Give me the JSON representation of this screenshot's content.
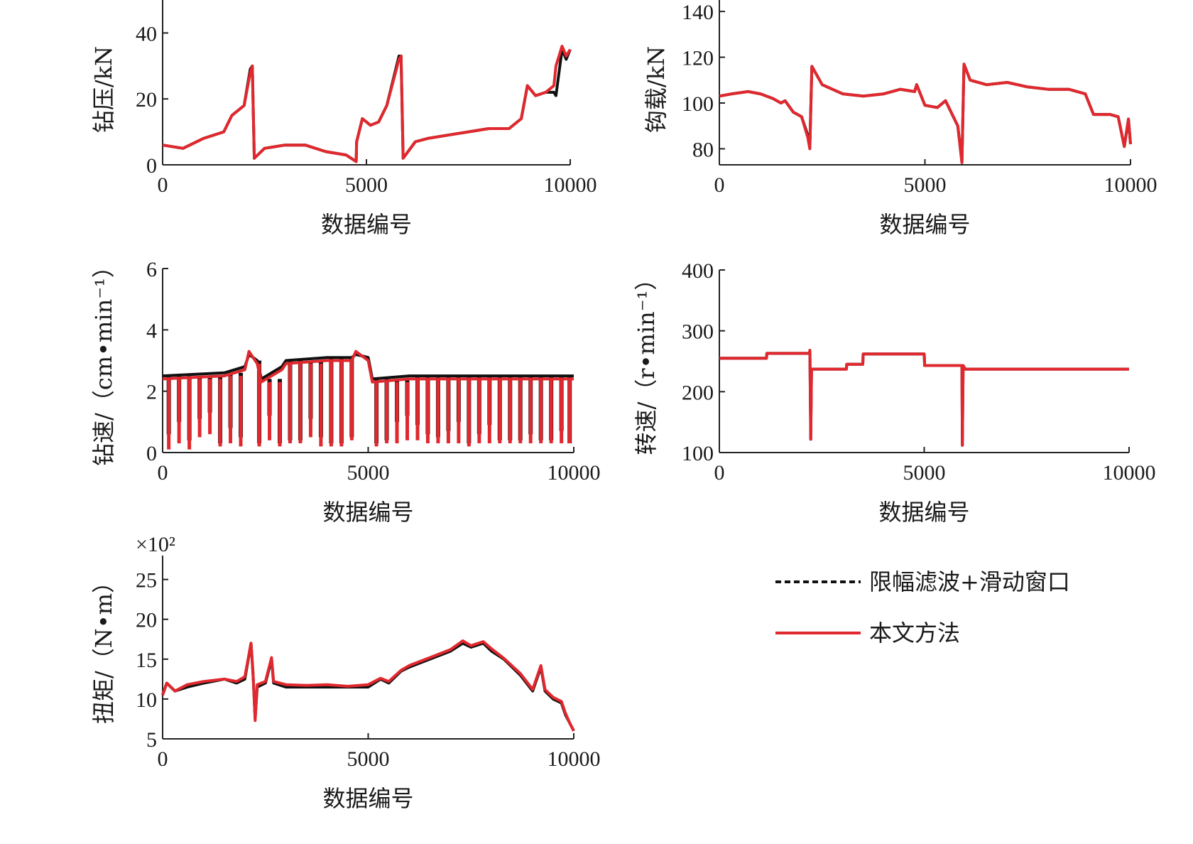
{
  "colors": {
    "filter": "#111111",
    "method": "#e0282e",
    "axis": "#222222"
  },
  "legend": {
    "filter_label": "限幅滤波+滑动窗口",
    "method_label": "本文方法"
  },
  "chart_data": [
    {
      "id": "drill-pressure",
      "type": "line",
      "ylabel": "钻压/kN",
      "xlabel": "数据编号",
      "xlim": [
        0,
        10000
      ],
      "ylim": [
        0,
        50
      ],
      "xticks": [
        "0",
        "5000",
        "10000"
      ],
      "xtick_values": [
        0,
        5000,
        10000
      ],
      "yticks": [
        "0",
        "20",
        "40"
      ],
      "ytick_values": [
        0,
        20,
        40
      ],
      "series": [
        {
          "name": "限幅滤波+滑动窗口",
          "role": "filter",
          "x": [
            0,
            500,
            1000,
            1500,
            1700,
            2000,
            2150,
            2200,
            2250,
            2500,
            3000,
            3500,
            4000,
            4500,
            4750,
            4760,
            4900,
            5100,
            5300,
            5500,
            5800,
            5850,
            5900,
            6200,
            6500,
            7000,
            7500,
            8000,
            8500,
            8800,
            8950,
            9150,
            9400,
            9600,
            9650,
            9800,
            9900,
            10000
          ],
          "y": [
            6,
            5,
            8,
            10,
            15,
            18,
            29,
            30,
            2,
            5,
            6,
            6,
            4,
            3,
            1,
            7,
            14,
            12,
            13,
            18,
            33,
            33,
            2,
            7,
            8,
            9,
            10,
            11,
            11,
            14,
            24,
            21,
            22,
            22,
            21,
            35,
            32,
            35
          ]
        },
        {
          "name": "本文方法",
          "role": "method",
          "x": [
            0,
            500,
            1000,
            1500,
            1700,
            2000,
            2150,
            2200,
            2250,
            2500,
            3000,
            3500,
            4000,
            4500,
            4750,
            4760,
            4900,
            5100,
            5300,
            5500,
            5800,
            5850,
            5900,
            6200,
            6500,
            7000,
            7500,
            8000,
            8500,
            8800,
            8950,
            9150,
            9400,
            9600,
            9650,
            9800,
            9900,
            10000
          ],
          "y": [
            6,
            5,
            8,
            10,
            15,
            18,
            28,
            30,
            2,
            5,
            6,
            6,
            4,
            3,
            1,
            7,
            14,
            12,
            13,
            18,
            32,
            33,
            2,
            7,
            8,
            9,
            10,
            11,
            11,
            14,
            24,
            21,
            22,
            24,
            30,
            36,
            33,
            35
          ]
        }
      ]
    },
    {
      "id": "hook-load",
      "type": "line",
      "ylabel": "钩载/kN",
      "xlabel": "数据编号",
      "xlim": [
        0,
        10000
      ],
      "ylim": [
        73,
        145
      ],
      "xticks": [
        "0",
        "5000",
        "10000"
      ],
      "xtick_values": [
        0,
        5000,
        10000
      ],
      "yticks": [
        "80",
        "100",
        "120",
        "140"
      ],
      "ytick_values": [
        80,
        100,
        120,
        140
      ],
      "series": [
        {
          "name": "限幅滤波+滑动窗口",
          "role": "filter",
          "x": [
            0,
            300,
            700,
            1000,
            1300,
            1500,
            1600,
            1800,
            2000,
            2150,
            2200,
            2250,
            2500,
            3000,
            3500,
            4000,
            4400,
            4750,
            4800,
            5000,
            5300,
            5500,
            5800,
            5900,
            5950,
            6100,
            6500,
            7000,
            7500,
            8000,
            8500,
            8900,
            9100,
            9500,
            9700,
            9850,
            9950,
            10000
          ],
          "y": [
            103,
            104,
            105,
            104,
            102,
            100,
            101,
            96,
            94,
            86,
            81,
            116,
            108,
            104,
            103,
            104,
            106,
            105,
            108,
            99,
            98,
            101,
            90,
            74,
            117,
            110,
            108,
            109,
            107,
            106,
            106,
            104,
            95,
            95,
            94,
            81,
            93,
            82
          ]
        },
        {
          "name": "本文方法",
          "role": "method",
          "x": [
            0,
            300,
            700,
            1000,
            1300,
            1500,
            1600,
            1800,
            2000,
            2150,
            2200,
            2250,
            2500,
            3000,
            3500,
            4000,
            4400,
            4750,
            4800,
            5000,
            5300,
            5500,
            5800,
            5900,
            5950,
            6100,
            6500,
            7000,
            7500,
            8000,
            8500,
            8900,
            9100,
            9500,
            9700,
            9850,
            9950,
            10000
          ],
          "y": [
            103,
            104,
            105,
            104,
            102,
            100,
            101,
            96,
            94,
            85,
            80,
            116,
            108,
            104,
            103,
            104,
            106,
            105,
            108,
            99,
            98,
            101,
            90,
            74,
            117,
            110,
            108,
            109,
            107,
            106,
            106,
            104,
            95,
            95,
            94,
            81,
            93,
            82
          ]
        }
      ]
    },
    {
      "id": "drill-speed",
      "type": "line",
      "ylabel": "钻速/（cm•min⁻¹）",
      "xlabel": "数据编号",
      "xlim": [
        0,
        10000
      ],
      "ylim": [
        0,
        6
      ],
      "xticks": [
        "0",
        "5000",
        "10000"
      ],
      "xtick_values": [
        0,
        5000,
        10000
      ],
      "yticks": [
        "0",
        "2",
        "4",
        "6"
      ],
      "ytick_values": [
        0,
        2,
        4,
        6
      ],
      "series": [
        {
          "name": "限幅滤波+滑动窗口",
          "role": "filter",
          "x": [
            0,
            1500,
            2000,
            2100,
            2300,
            2400,
            2900,
            3000,
            4000,
            4600,
            4700,
            5000,
            5100,
            6000,
            7000,
            8000,
            9000,
            10000
          ],
          "y": [
            2.5,
            2.6,
            2.8,
            3.2,
            3.0,
            2.4,
            2.8,
            3.0,
            3.1,
            3.1,
            3.2,
            3.1,
            2.4,
            2.5,
            2.5,
            2.5,
            2.5,
            2.5
          ],
          "dips_x": [
            150,
            400,
            650,
            900,
            1150,
            1400,
            1650,
            1900,
            2350,
            2600,
            2850,
            3100,
            3350,
            3600,
            3850,
            4100,
            4350,
            4600,
            5200,
            5450,
            5700,
            5950,
            6200,
            6450,
            6700,
            6950,
            7200,
            7450,
            7700,
            7950,
            8200,
            8450,
            8700,
            8950,
            9200,
            9450,
            9700,
            9900
          ],
          "dips_y": [
            0.6,
            1.0,
            0.4,
            1.1,
            1.3,
            0.3,
            0.8,
            0.5,
            0.3,
            1.2,
            0.3,
            0.4,
            0.4,
            1.1,
            0.5,
            0.3,
            0.3,
            0.5,
            0.3,
            0.4,
            1.0,
            1.2,
            0.9,
            0.6,
            0.5,
            0.7,
            1.0,
            0.3,
            0.6,
            0.9,
            0.4,
            0.4,
            0.4,
            0.6,
            0.4,
            0.4,
            0.7,
            0.3
          ]
        },
        {
          "name": "本文方法",
          "role": "method",
          "x": [
            0,
            1500,
            2000,
            2100,
            2300,
            2400,
            2900,
            3000,
            4000,
            4600,
            4700,
            5000,
            5100,
            6000,
            7000,
            8000,
            9000,
            10000
          ],
          "y": [
            2.4,
            2.5,
            2.7,
            3.3,
            2.9,
            2.3,
            2.7,
            2.9,
            3.0,
            3.0,
            3.3,
            3.0,
            2.3,
            2.4,
            2.4,
            2.4,
            2.4,
            2.4
          ],
          "dips_x": [
            150,
            400,
            650,
            900,
            1150,
            1400,
            1650,
            1900,
            2350,
            2600,
            2850,
            3100,
            3350,
            3600,
            3850,
            4100,
            4350,
            4600,
            5200,
            5450,
            5700,
            5950,
            6200,
            6450,
            6700,
            6950,
            7200,
            7450,
            7700,
            7950,
            8200,
            8450,
            8700,
            8950,
            9200,
            9450,
            9700,
            9900
          ],
          "dips_y": [
            0.1,
            0.3,
            0.1,
            0.5,
            0.6,
            0.2,
            0.3,
            0.2,
            0.2,
            0.4,
            0.2,
            0.3,
            0.3,
            0.5,
            0.2,
            0.2,
            0.2,
            0.4,
            0.2,
            0.3,
            0.3,
            0.4,
            0.4,
            0.3,
            0.3,
            0.3,
            0.3,
            0.2,
            0.3,
            0.3,
            0.3,
            0.3,
            0.3,
            0.3,
            0.3,
            0.3,
            0.3,
            0.3
          ]
        }
      ]
    },
    {
      "id": "rotary-speed",
      "type": "line",
      "ylabel": "转速/（r•min⁻¹）",
      "xlabel": "数据编号",
      "xlim": [
        0,
        10000
      ],
      "ylim": [
        100,
        400
      ],
      "xticks": [
        "0",
        "5000",
        "10000"
      ],
      "xtick_values": [
        0,
        5000,
        10000
      ],
      "yticks": [
        "100",
        "200",
        "300",
        "400"
      ],
      "ytick_values": [
        100,
        200,
        300,
        400
      ],
      "series": [
        {
          "name": "限幅滤波+滑动窗口",
          "role": "filter",
          "x": [
            0,
            1150,
            1160,
            2200,
            2210,
            2230,
            2250,
            3100,
            3110,
            3500,
            3510,
            5000,
            5010,
            5920,
            5930,
            5950,
            6000,
            10000
          ],
          "y": [
            255,
            255,
            263,
            263,
            268,
            122,
            237,
            237,
            245,
            245,
            262,
            262,
            243,
            243,
            112,
            243,
            237,
            237
          ]
        },
        {
          "name": "本文方法",
          "role": "method",
          "x": [
            0,
            1150,
            1160,
            2200,
            2210,
            2230,
            2250,
            3100,
            3110,
            3500,
            3510,
            5000,
            5010,
            5920,
            5930,
            5950,
            6000,
            10000
          ],
          "y": [
            255,
            255,
            263,
            263,
            268,
            122,
            237,
            237,
            245,
            245,
            262,
            262,
            243,
            243,
            112,
            243,
            237,
            237
          ]
        }
      ]
    },
    {
      "id": "torque",
      "type": "line",
      "ylabel": "扭矩/（N•m）",
      "xlabel": "数据编号",
      "exponent_label": "×10²",
      "xlim": [
        0,
        10000
      ],
      "ylim": [
        5,
        28
      ],
      "xticks": [
        "0",
        "5000",
        "10000"
      ],
      "xtick_values": [
        0,
        5000,
        10000
      ],
      "yticks": [
        "5",
        "10",
        "15",
        "20",
        "25"
      ],
      "ytick_values": [
        5,
        10,
        15,
        20,
        25
      ],
      "series": [
        {
          "name": "限幅滤波+滑动窗口",
          "role": "filter",
          "x": [
            0,
            100,
            300,
            600,
            1000,
            1500,
            1800,
            2000,
            2150,
            2200,
            2250,
            2300,
            2500,
            2650,
            2700,
            3000,
            3500,
            4000,
            4500,
            5000,
            5300,
            5500,
            5800,
            6000,
            6500,
            7000,
            7300,
            7500,
            7800,
            8000,
            8300,
            8700,
            9000,
            9200,
            9300,
            9500,
            9700,
            9800,
            9900,
            10000
          ],
          "y": [
            10.5,
            12,
            11,
            11.5,
            12,
            12.5,
            12,
            12.5,
            17,
            13,
            7.5,
            11.5,
            12,
            15,
            12,
            11.5,
            11.5,
            11.5,
            11.5,
            11.5,
            12.5,
            12,
            13.5,
            14,
            15,
            16,
            17,
            16.5,
            17,
            16,
            15,
            13,
            11,
            14,
            11,
            10,
            9.5,
            8,
            7,
            6
          ]
        },
        {
          "name": "本文方法",
          "role": "method",
          "x": [
            0,
            100,
            300,
            600,
            1000,
            1500,
            1800,
            2000,
            2150,
            2200,
            2250,
            2300,
            2500,
            2650,
            2700,
            3000,
            3500,
            4000,
            4500,
            5000,
            5300,
            5500,
            5800,
            6000,
            6500,
            7000,
            7300,
            7500,
            7800,
            8000,
            8300,
            8700,
            9000,
            9200,
            9300,
            9500,
            9700,
            9800,
            9900,
            10000
          ],
          "y": [
            10.5,
            12,
            11,
            11.8,
            12.2,
            12.5,
            12.2,
            12.8,
            17,
            13.2,
            7.3,
            11.8,
            12.2,
            15.2,
            12.2,
            11.8,
            11.7,
            11.8,
            11.6,
            11.8,
            12.6,
            12.2,
            13.6,
            14.2,
            15.2,
            16.2,
            17.3,
            16.7,
            17.2,
            16.3,
            15.1,
            13.2,
            11.2,
            14.2,
            11.2,
            10.2,
            9.7,
            8.2,
            7,
            6
          ]
        }
      ]
    }
  ]
}
